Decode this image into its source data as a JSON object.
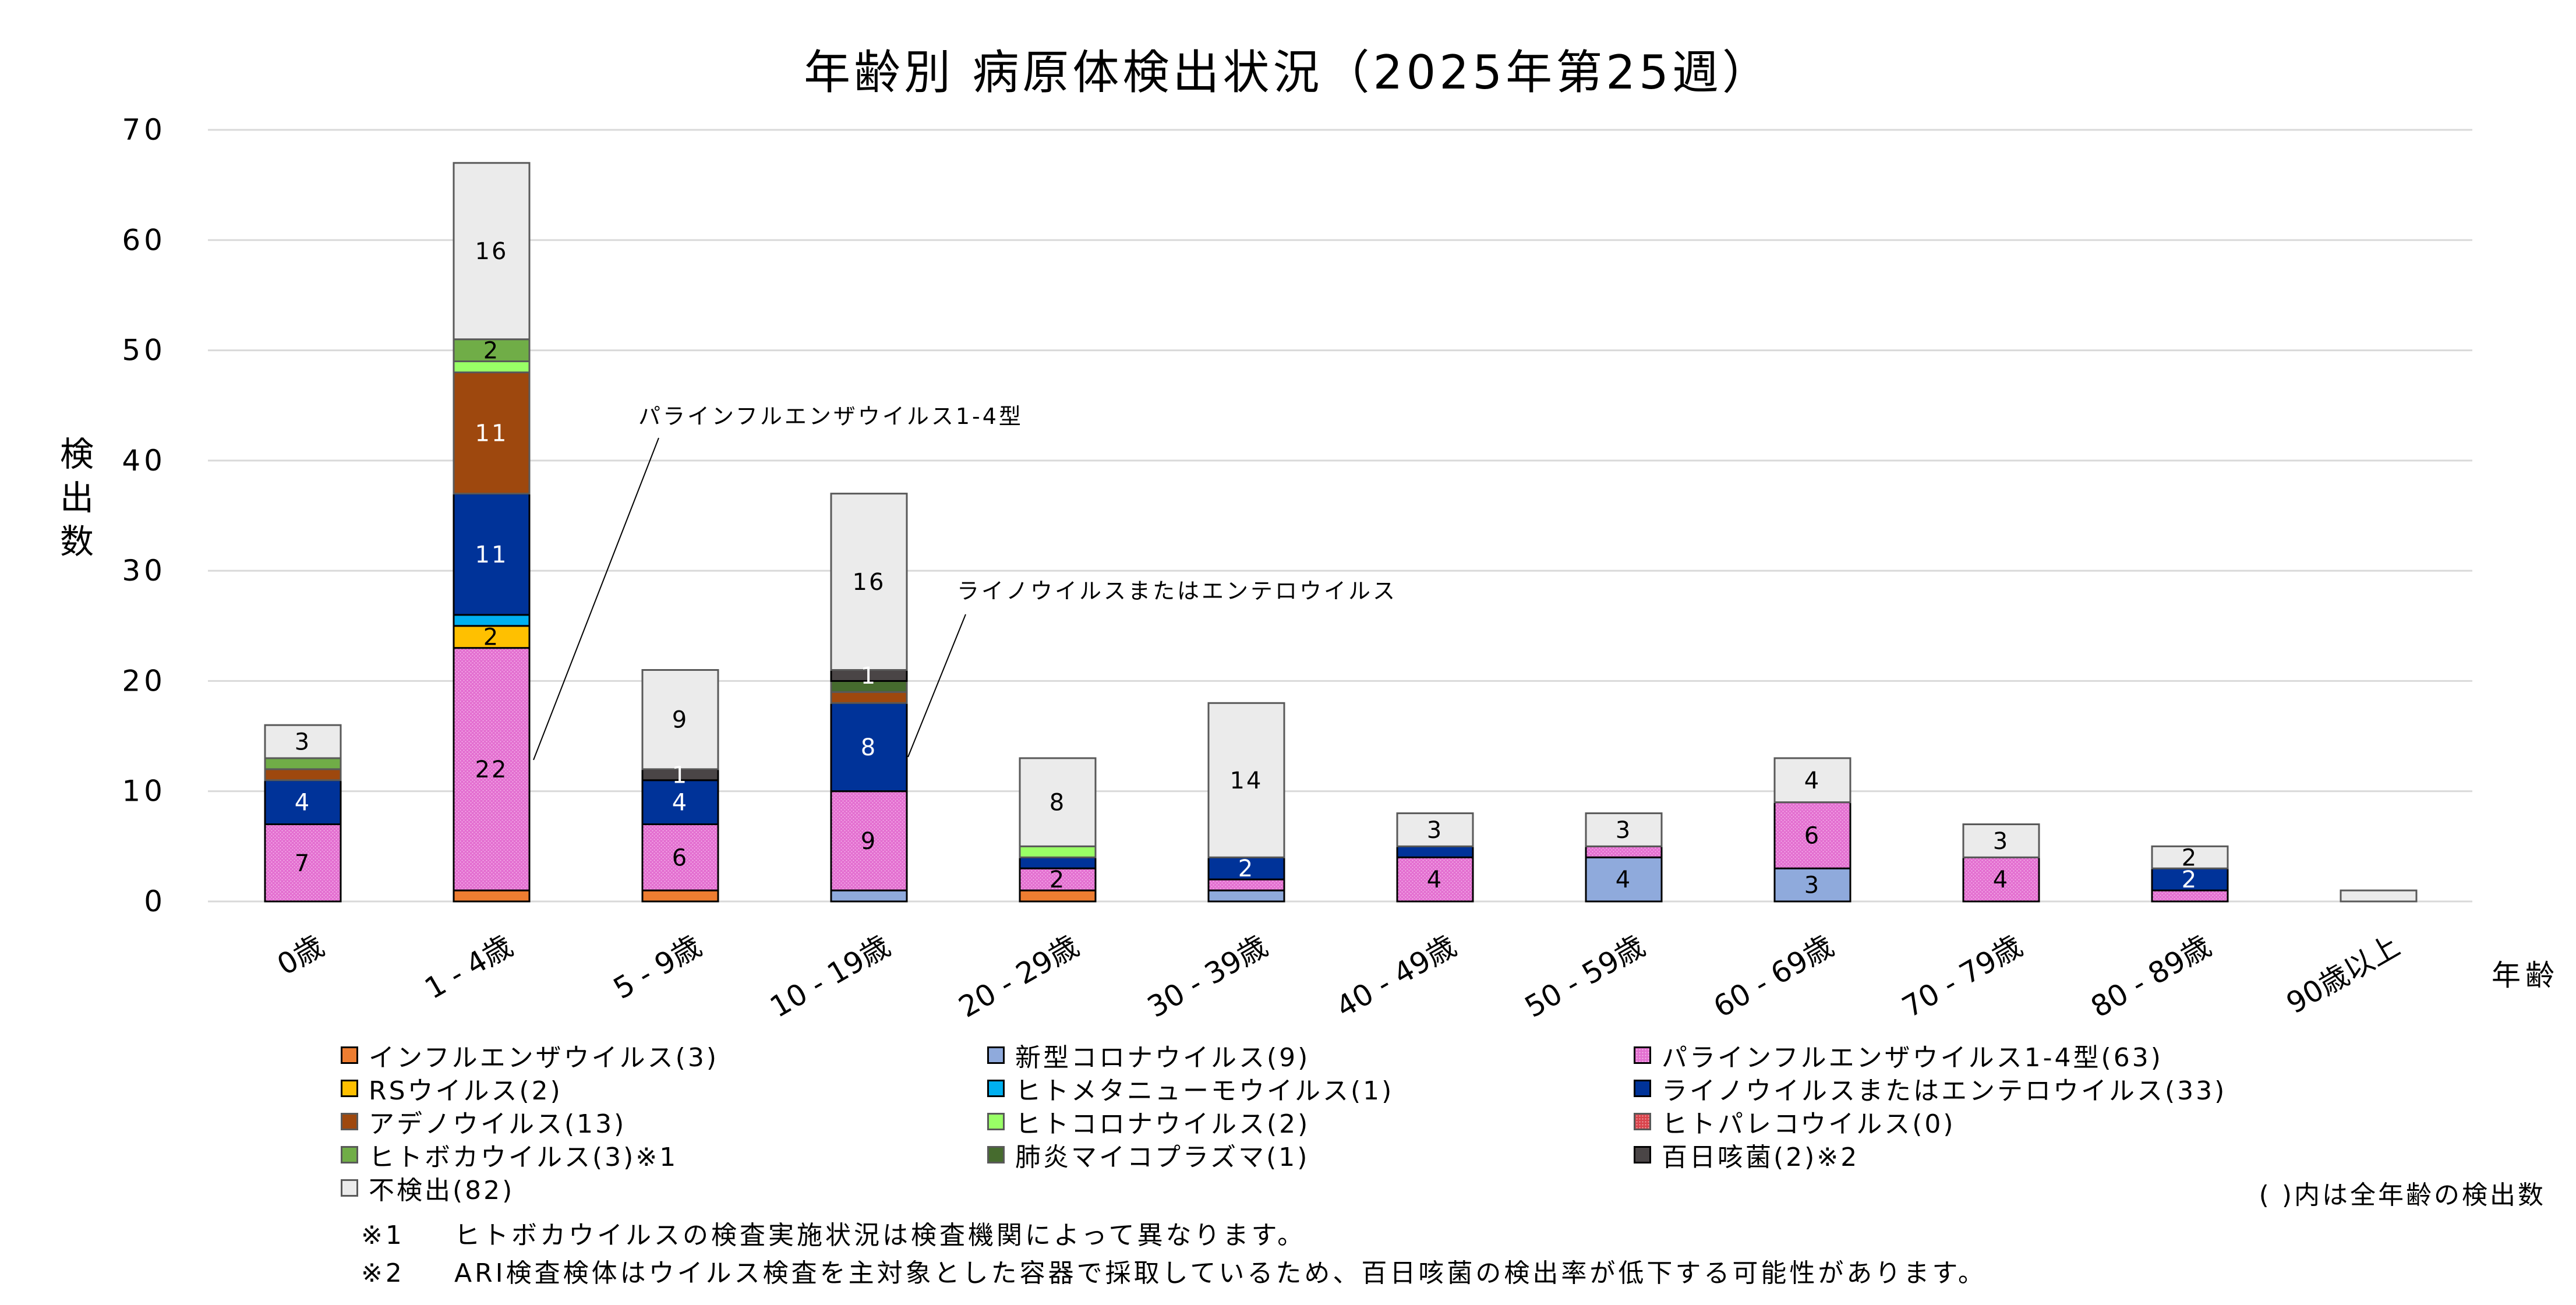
{
  "chart_data": {
    "type": "bar",
    "stacked": true,
    "title": "年齢別 病原体検出状況（2025年第25週）",
    "xlabel": "年齢",
    "ylabel": "検出数",
    "ylim": [
      0,
      70
    ],
    "yticks": [
      0,
      10,
      20,
      30,
      40,
      50,
      60,
      70
    ],
    "grid": true,
    "legend_position": "bottom",
    "categories": [
      "0歳",
      "1 - 4歳",
      "5 - 9歳",
      "10 - 19歳",
      "20 - 29歳",
      "30 - 39歳",
      "40 - 49歳",
      "50 - 59歳",
      "60 - 69歳",
      "70 - 79歳",
      "80 - 89歳",
      "90歳以上"
    ],
    "series": [
      {
        "name": "インフルエンザウイルス",
        "legend_label": "インフルエンザウイルス(3)",
        "color": "#ED7D31",
        "border": "#000000",
        "values": [
          0,
          1,
          1,
          0,
          1,
          0,
          0,
          0,
          0,
          0,
          0,
          0
        ]
      },
      {
        "name": "新型コロナウイルス",
        "legend_label": "新型コロナウイルス(9)",
        "color": "#8FAADC",
        "border": "#000000",
        "values": [
          0,
          0,
          0,
          1,
          0,
          1,
          0,
          4,
          3,
          0,
          0,
          0
        ]
      },
      {
        "name": "パラインフルエンザウイルス1-4型",
        "legend_label": "パラインフルエンザウイルス1-4型(63)",
        "color": "#E36FD0",
        "border": "#000000",
        "pattern": true,
        "values": [
          7,
          22,
          6,
          9,
          2,
          1,
          4,
          1,
          6,
          4,
          1,
          0
        ]
      },
      {
        "name": "RSウイルス",
        "legend_label": "RSウイルス(2)",
        "color": "#FFC000",
        "border": "#000000",
        "values": [
          0,
          2,
          0,
          0,
          0,
          0,
          0,
          0,
          0,
          0,
          0,
          0
        ]
      },
      {
        "name": "ヒトメタニューモウイルス",
        "legend_label": "ヒトメタニューモウイルス(1)",
        "color": "#00B0F0",
        "border": "#000000",
        "values": [
          0,
          1,
          0,
          0,
          0,
          0,
          0,
          0,
          0,
          0,
          0,
          0
        ]
      },
      {
        "name": "ライノウイルスまたはエンテロウイルス",
        "legend_label": "ライノウイルスまたはエンテロウイルス(33)",
        "color": "#003399",
        "border": "#000000",
        "values": [
          4,
          11,
          4,
          8,
          1,
          2,
          1,
          0,
          0,
          0,
          2,
          0
        ]
      },
      {
        "name": "アデノウイルス",
        "legend_label": "アデノウイルス(13)",
        "color": "#9E480E",
        "border": "#595959",
        "values": [
          1,
          11,
          0,
          1,
          0,
          0,
          0,
          0,
          0,
          0,
          0,
          0
        ]
      },
      {
        "name": "ヒトコロナウイルス",
        "legend_label": "ヒトコロナウイルス(2)",
        "color": "#99FF66",
        "border": "#595959",
        "values": [
          0,
          1,
          0,
          0,
          1,
          0,
          0,
          0,
          0,
          0,
          0,
          0
        ]
      },
      {
        "name": "ヒトパレコウイルス",
        "legend_label": "ヒトパレコウイルス(0)",
        "color": "#D9434B",
        "border": "#595959",
        "pattern": true,
        "values": [
          0,
          0,
          0,
          0,
          0,
          0,
          0,
          0,
          0,
          0,
          0,
          0
        ]
      },
      {
        "name": "ヒトボカウイルス",
        "legend_label": "ヒトボカウイルス(3)※1",
        "color": "#70AD47",
        "border": "#595959",
        "values": [
          1,
          2,
          0,
          0,
          0,
          0,
          0,
          0,
          0,
          0,
          0,
          0
        ]
      },
      {
        "name": "肺炎マイコプラズマ",
        "legend_label": "肺炎マイコプラズマ(1)",
        "color": "#466B2E",
        "border": "#595959",
        "values": [
          0,
          0,
          0,
          1,
          0,
          0,
          0,
          0,
          0,
          0,
          0,
          0
        ]
      },
      {
        "name": "百日咳菌",
        "legend_label": "百日咳菌(2)※2",
        "color": "#4A4546",
        "border": "#000000",
        "values": [
          0,
          0,
          1,
          1,
          0,
          0,
          0,
          0,
          0,
          0,
          0,
          0
        ]
      },
      {
        "name": "不検出",
        "legend_label": "不検出(82)",
        "color": "#EBEBEB",
        "border": "#595959",
        "values": [
          3,
          16,
          9,
          16,
          8,
          14,
          3,
          3,
          4,
          3,
          2,
          1
        ]
      }
    ],
    "data_labels": [
      {
        "category": "0歳",
        "series": "パラインフルエンザウイルス1-4型",
        "text": "7",
        "color": "#000"
      },
      {
        "category": "0歳",
        "series": "ライノウイルスまたはエンテロウイルス",
        "text": "4",
        "color": "#fff"
      },
      {
        "category": "0歳",
        "series": "不検出",
        "text": "3",
        "color": "#000"
      },
      {
        "category": "1 - 4歳",
        "series": "パラインフルエンザウイルス1-4型",
        "text": "22",
        "color": "#000"
      },
      {
        "category": "1 - 4歳",
        "series": "RSウイルス",
        "text": "2",
        "color": "#000"
      },
      {
        "category": "1 - 4歳",
        "series": "ライノウイルスまたはエンテロウイルス",
        "text": "11",
        "color": "#fff"
      },
      {
        "category": "1 - 4歳",
        "series": "アデノウイルス",
        "text": "11",
        "color": "#fff"
      },
      {
        "category": "1 - 4歳",
        "series": "ヒトボカウイルス",
        "text": "2",
        "color": "#000"
      },
      {
        "category": "1 - 4歳",
        "series": "不検出",
        "text": "16",
        "color": "#000"
      },
      {
        "category": "5 - 9歳",
        "series": "パラインフルエンザウイルス1-4型",
        "text": "6",
        "color": "#000"
      },
      {
        "category": "5 - 9歳",
        "series": "ライノウイルスまたはエンテロウイルス",
        "text": "4",
        "color": "#fff"
      },
      {
        "category": "5 - 9歳",
        "series": "百日咳菌",
        "text": "1",
        "color": "#fff"
      },
      {
        "category": "5 - 9歳",
        "series": "不検出",
        "text": "9",
        "color": "#000"
      },
      {
        "category": "10 - 19歳",
        "series": "パラインフルエンザウイルス1-4型",
        "text": "9",
        "color": "#000"
      },
      {
        "category": "10 - 19歳",
        "series": "ライノウイルスまたはエンテロウイルス",
        "text": "8",
        "color": "#fff"
      },
      {
        "category": "10 - 19歳",
        "series": "百日咳菌",
        "text": "1",
        "color": "#fff"
      },
      {
        "category": "10 - 19歳",
        "series": "不検出",
        "text": "16",
        "color": "#000"
      },
      {
        "category": "20 - 29歳",
        "series": "パラインフルエンザウイルス1-4型",
        "text": "2",
        "color": "#000"
      },
      {
        "category": "20 - 29歳",
        "series": "不検出",
        "text": "8",
        "color": "#000"
      },
      {
        "category": "30 - 39歳",
        "series": "ライノウイルスまたはエンテロウイルス",
        "text": "2",
        "color": "#fff"
      },
      {
        "category": "30 - 39歳",
        "series": "不検出",
        "text": "14",
        "color": "#000"
      },
      {
        "category": "40 - 49歳",
        "series": "パラインフルエンザウイルス1-4型",
        "text": "4",
        "color": "#000"
      },
      {
        "category": "40 - 49歳",
        "series": "不検出",
        "text": "3",
        "color": "#000"
      },
      {
        "category": "50 - 59歳",
        "series": "新型コロナウイルス",
        "text": "4",
        "color": "#000"
      },
      {
        "category": "50 - 59歳",
        "series": "不検出",
        "text": "3",
        "color": "#000"
      },
      {
        "category": "60 - 69歳",
        "series": "新型コロナウイルス",
        "text": "3",
        "color": "#000"
      },
      {
        "category": "60 - 69歳",
        "series": "パラインフルエンザウイルス1-4型",
        "text": "6",
        "color": "#000"
      },
      {
        "category": "60 - 69歳",
        "series": "不検出",
        "text": "4",
        "color": "#000"
      },
      {
        "category": "70 - 79歳",
        "series": "パラインフルエンザウイルス1-4型",
        "text": "4",
        "color": "#000"
      },
      {
        "category": "70 - 79歳",
        "series": "不検出",
        "text": "3",
        "color": "#000"
      },
      {
        "category": "80 - 89歳",
        "series": "ライノウイルスまたはエンテロウイルス",
        "text": "2",
        "color": "#fff"
      },
      {
        "category": "80 - 89歳",
        "series": "不検出",
        "text": "2",
        "color": "#000"
      }
    ],
    "annotations": [
      {
        "text": "パラインフルエンザウイルス1-4型",
        "category": "1 - 4歳",
        "series": "パラインフルエンザウイルス1-4型"
      },
      {
        "text": "ライノウイルスまたはエンテロウイルス",
        "category": "10 - 19歳",
        "series": "ライノウイルスまたはエンテロウイルス"
      }
    ]
  },
  "legend_note": "( )内は全年齢の検出数",
  "footnotes": [
    {
      "mark": "※1",
      "text": "ヒトボカウイルスの検査実施状況は検査機関によって異なります。"
    },
    {
      "mark": "※2",
      "text": "ARI検査検体はウイルス検査を主対象とした容器で採取しているため、百日咳菌の検出率が低下する可能性があります。"
    }
  ]
}
